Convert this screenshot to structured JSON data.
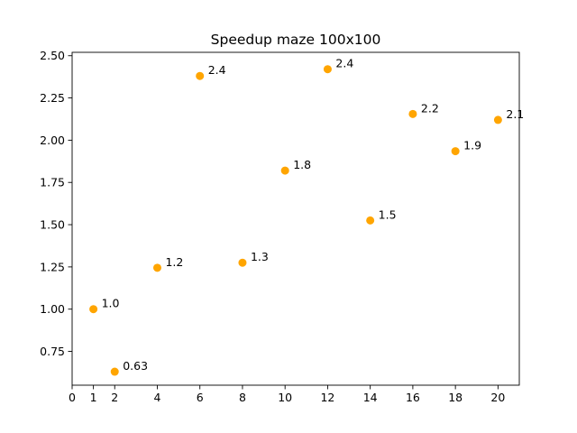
{
  "chart_data": {
    "type": "scatter",
    "title": "Speedup maze 100x100",
    "xlabel": "",
    "ylabel": "",
    "xlim": [
      0,
      21
    ],
    "ylim": [
      0.55,
      2.52
    ],
    "x_ticks": [
      0,
      1,
      2,
      4,
      6,
      8,
      10,
      12,
      14,
      16,
      18,
      20
    ],
    "x_tick_labels": [
      "0",
      "1",
      "2",
      "4",
      "6",
      "8",
      "10",
      "12",
      "14",
      "16",
      "18",
      "20"
    ],
    "y_ticks": [
      0.75,
      1.0,
      1.25,
      1.5,
      1.75,
      2.0,
      2.25,
      2.5
    ],
    "y_tick_labels": [
      "0.75",
      "1.00",
      "1.25",
      "1.50",
      "1.75",
      "2.00",
      "2.25",
      "2.50"
    ],
    "grid": false,
    "legend": "none",
    "marker_color": "#FFA500",
    "points": [
      {
        "x": 1,
        "y": 1.0,
        "label": "1.0"
      },
      {
        "x": 2,
        "y": 0.63,
        "label": "0.63"
      },
      {
        "x": 4,
        "y": 1.245,
        "label": "1.2"
      },
      {
        "x": 6,
        "y": 2.38,
        "label": "2.4"
      },
      {
        "x": 8,
        "y": 1.275,
        "label": "1.3"
      },
      {
        "x": 10,
        "y": 1.82,
        "label": "1.8"
      },
      {
        "x": 12,
        "y": 2.42,
        "label": "2.4"
      },
      {
        "x": 14,
        "y": 1.525,
        "label": "1.5"
      },
      {
        "x": 16,
        "y": 2.155,
        "label": "2.2"
      },
      {
        "x": 18,
        "y": 1.935,
        "label": "1.9"
      },
      {
        "x": 20,
        "y": 2.12,
        "label": "2.1"
      }
    ]
  }
}
